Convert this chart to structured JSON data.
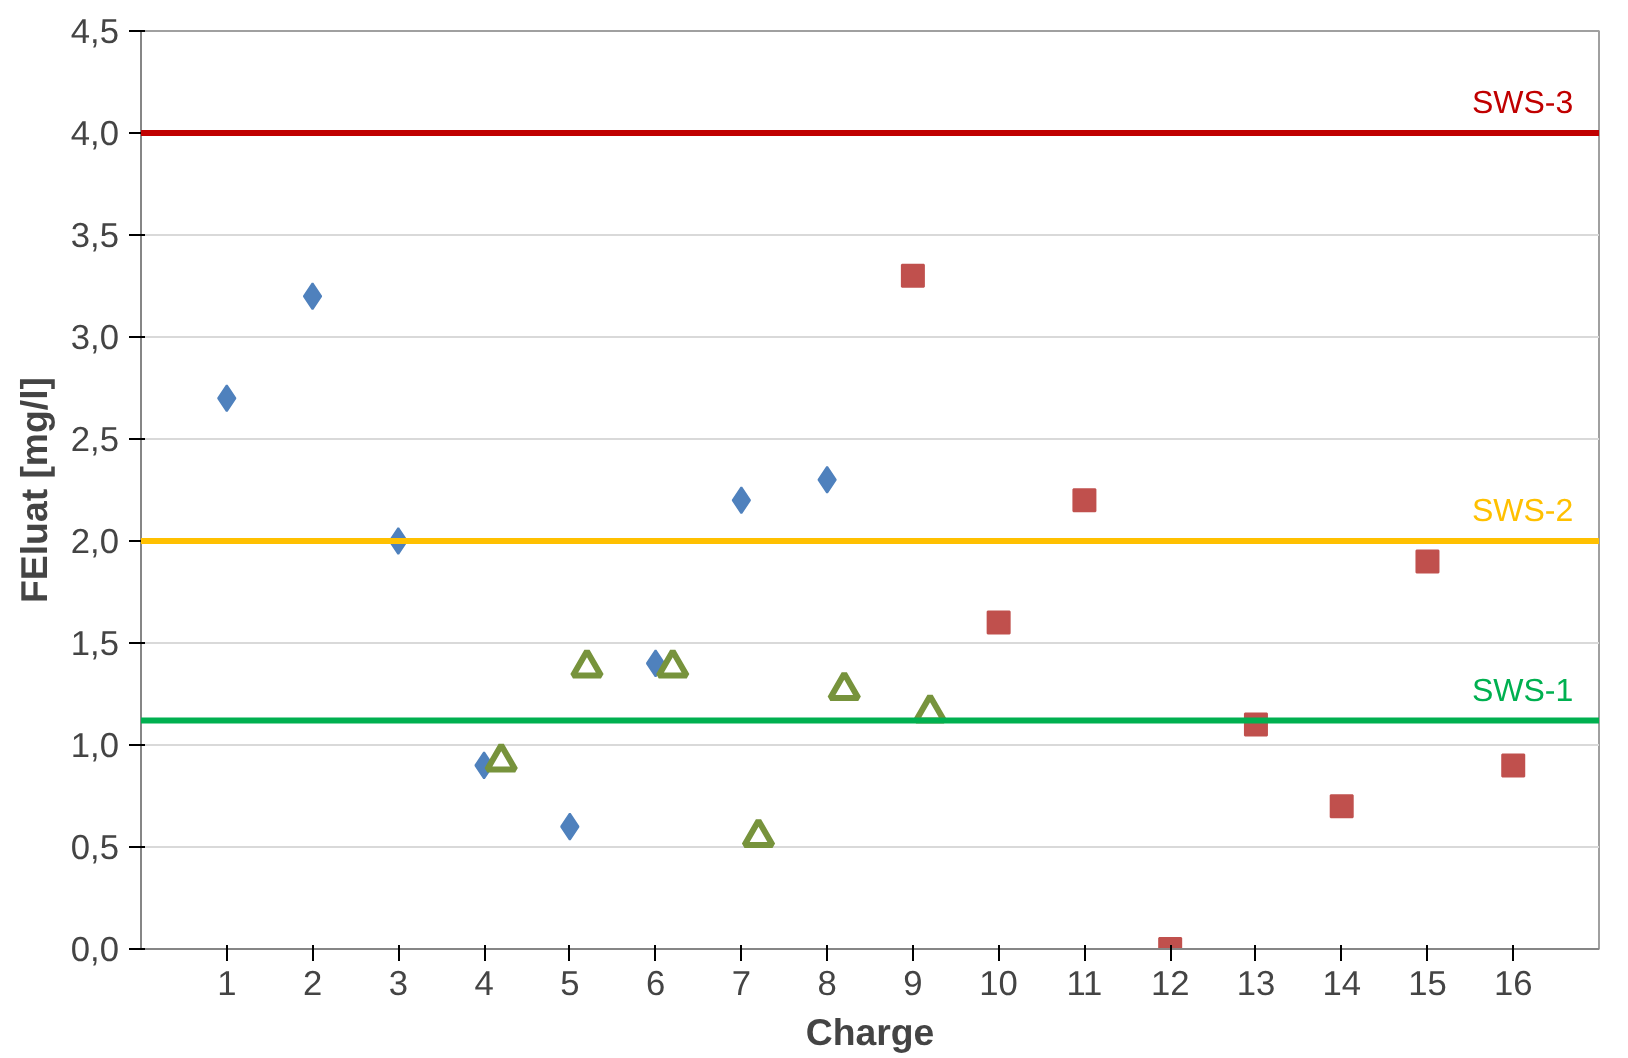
{
  "chart_data": {
    "type": "scatter",
    "xlabel": "Charge",
    "ylabel": "FEluat [mg/l]",
    "xlim": [
      0,
      17
    ],
    "xticks": [
      1,
      2,
      3,
      4,
      5,
      6,
      7,
      8,
      9,
      10,
      11,
      12,
      13,
      14,
      15,
      16
    ],
    "ylim": [
      0,
      4.5
    ],
    "yticks": [
      {
        "value": 0,
        "label": "0,0"
      },
      {
        "value": 0.5,
        "label": "0,5"
      },
      {
        "value": 1,
        "label": "1,0"
      },
      {
        "value": 1.5,
        "label": "1,5"
      },
      {
        "value": 2,
        "label": "2,0"
      },
      {
        "value": 2.5,
        "label": "2,5"
      },
      {
        "value": 3,
        "label": "3,0"
      },
      {
        "value": 3.5,
        "label": "3,5"
      },
      {
        "value": 4,
        "label": "4,0"
      },
      {
        "value": 4.5,
        "label": "4,5"
      }
    ],
    "grid": "y",
    "series": [
      {
        "color": "#4f81bd",
        "marker": "diamond",
        "x": [
          1,
          2,
          3,
          4,
          5,
          6,
          7,
          8
        ],
        "values": [
          2.7,
          3.2,
          2.0,
          0.9,
          0.6,
          1.4,
          2.2,
          2.3
        ]
      },
      {
        "color": "#77933c",
        "marker": "triangle",
        "x": [
          4.2,
          5.2,
          6.2,
          7.2,
          8.2,
          9.2
        ],
        "values": [
          0.92,
          1.38,
          1.38,
          0.55,
          1.27,
          1.16
        ]
      },
      {
        "color": "#c0504d",
        "marker": "square",
        "x": [
          9,
          10,
          11,
          12,
          13,
          14,
          15,
          16
        ],
        "values": [
          3.3,
          1.6,
          2.2,
          0.0,
          1.1,
          0.7,
          1.9,
          0.9
        ]
      }
    ],
    "ref_lines": [
      {
        "axis": "y",
        "value": 4.0,
        "label": "SWS-3",
        "color": "#c00000"
      },
      {
        "axis": "y",
        "value": 2.0,
        "label": "SWS-2",
        "color": "#ffc000"
      },
      {
        "axis": "y",
        "value": 1.12,
        "label": "SWS-1",
        "color": "#00b050"
      }
    ]
  }
}
